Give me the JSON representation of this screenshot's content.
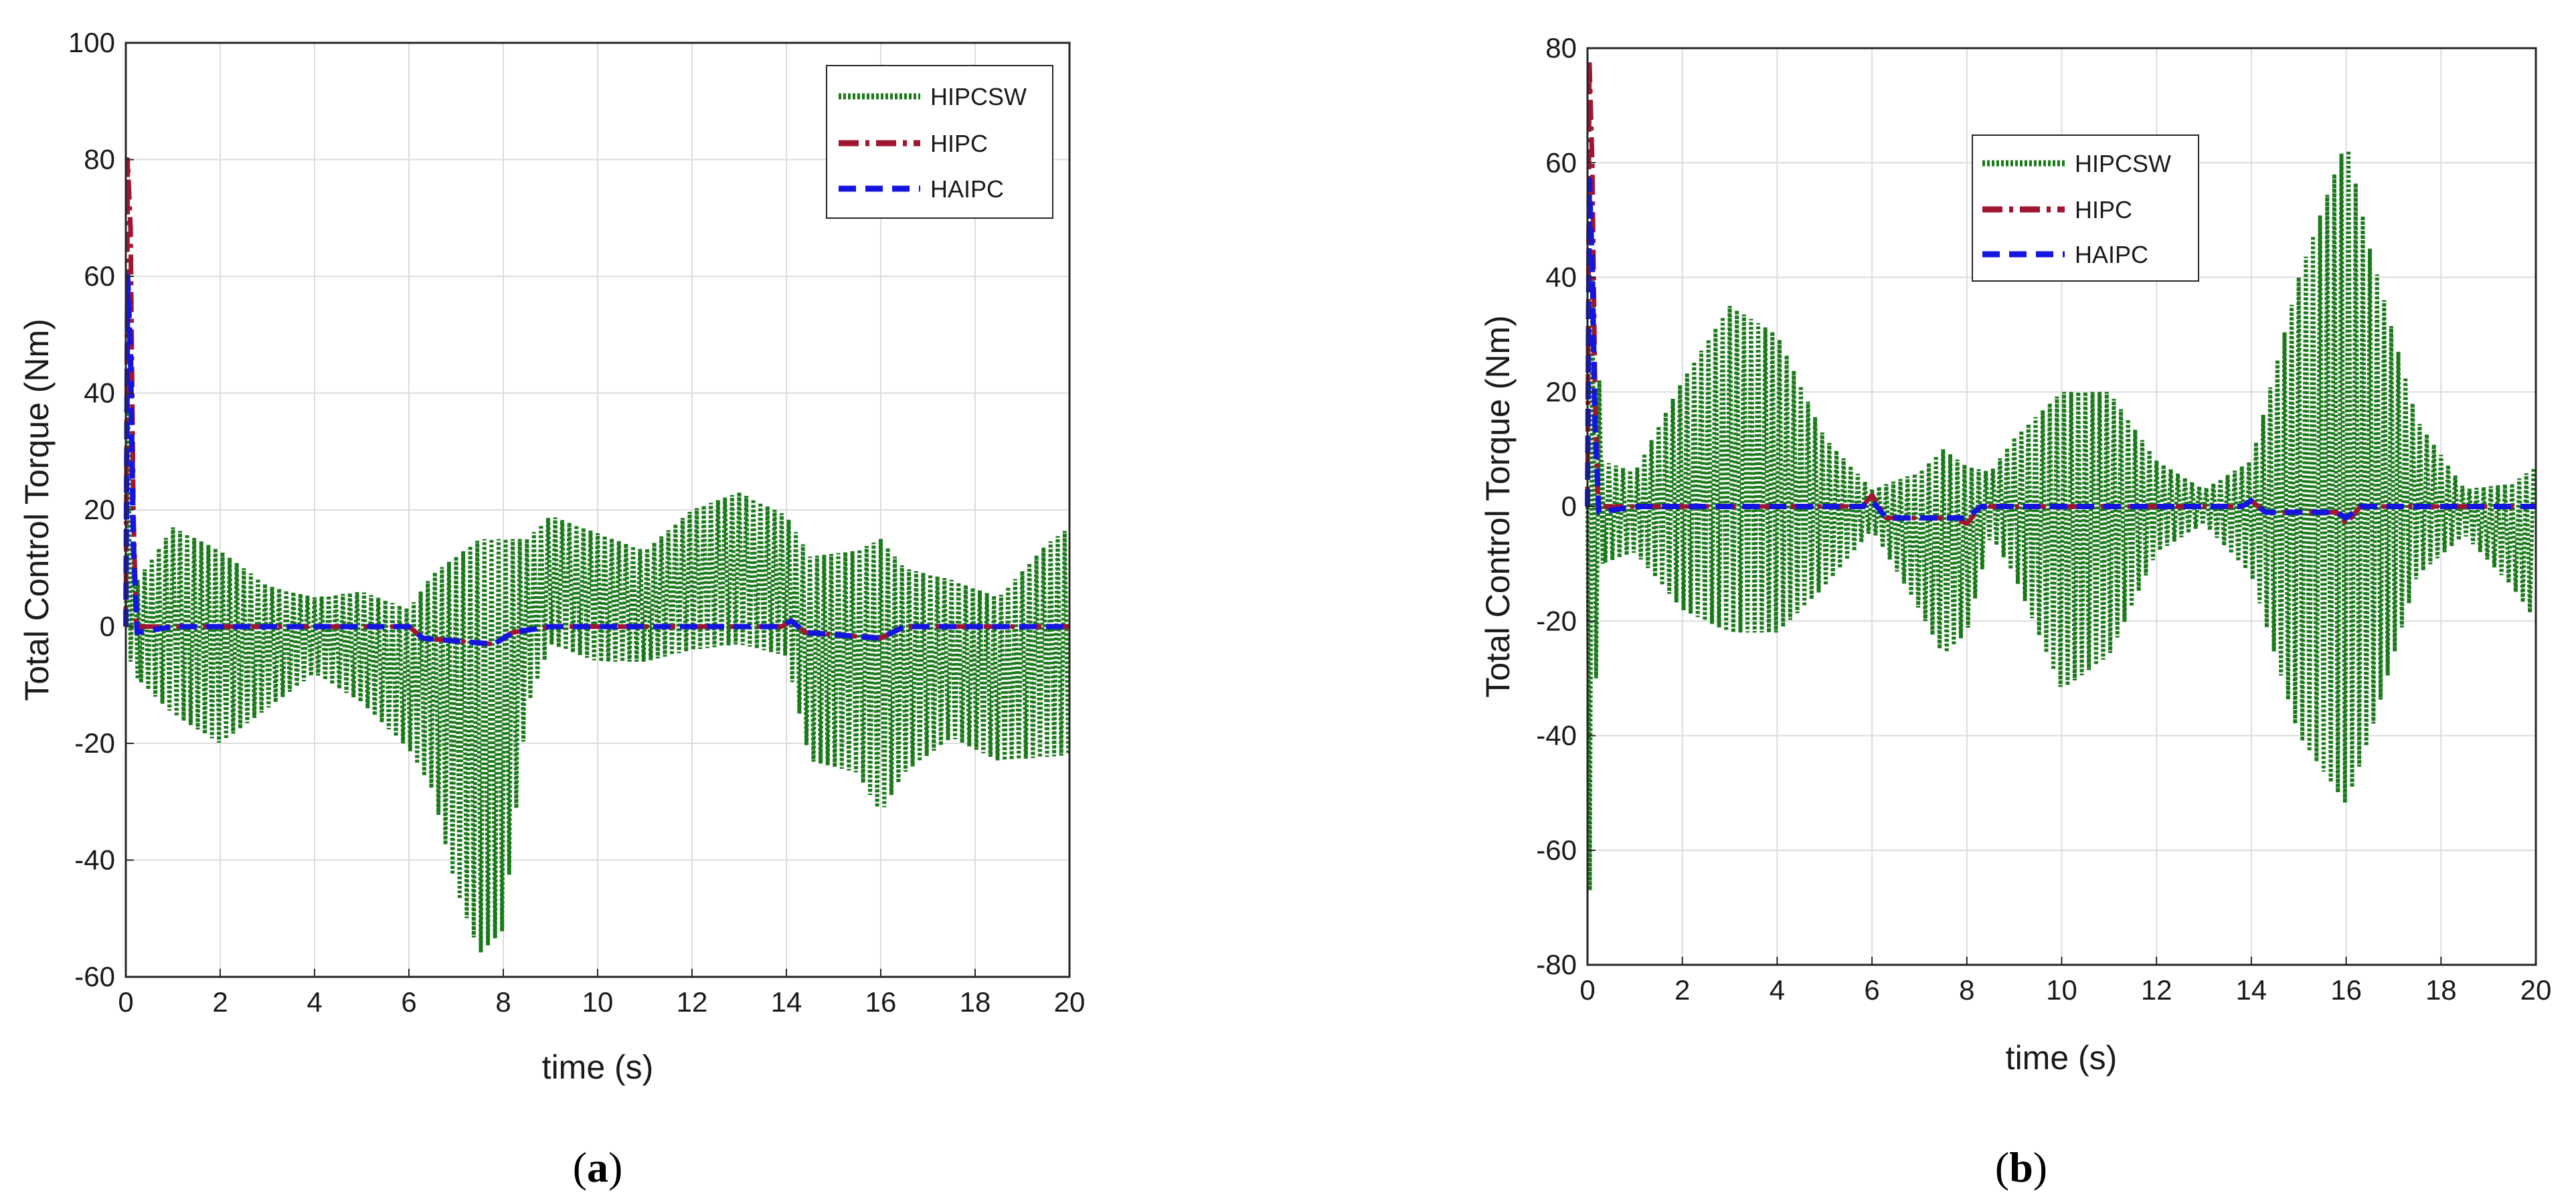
{
  "chart_data": [
    {
      "type": "line",
      "panel_prefix": "(",
      "panel_letter": "a",
      "panel_suffix": ")",
      "xlabel": "time (s)",
      "ylabel": "Total Control Torque (Nm)",
      "xlim": [
        0,
        20
      ],
      "ylim": [
        -60,
        100
      ],
      "xticks": [
        0,
        2,
        4,
        6,
        8,
        10,
        12,
        14,
        16,
        18,
        20
      ],
      "yticks": [
        -60,
        -40,
        -20,
        0,
        20,
        40,
        60,
        80,
        100
      ],
      "grid": true,
      "legend_position": "top-right",
      "series": [
        {
          "name": "HIPCSW",
          "color": "#1a7a1a",
          "style": "dotted",
          "oscillating": true,
          "carrier_period": 0.15,
          "initial": [
            [
              0,
              0
            ],
            [
              0.05,
              38
            ],
            [
              0.1,
              -6
            ],
            [
              0.18,
              14
            ],
            [
              0.25,
              -9
            ]
          ],
          "upper": [
            [
              0.25,
              8
            ],
            [
              1,
              17
            ],
            [
              2,
              13
            ],
            [
              3,
              7
            ],
            [
              4,
              5
            ],
            [
              5,
              6
            ],
            [
              6,
              3
            ],
            [
              6.5,
              9
            ],
            [
              7.5,
              15
            ],
            [
              8.5,
              15
            ],
            [
              9,
              19
            ],
            [
              10,
              16
            ],
            [
              11,
              13
            ],
            [
              12,
              20
            ],
            [
              13,
              23
            ],
            [
              14,
              19
            ],
            [
              14.5,
              12
            ],
            [
              15.5,
              13
            ],
            [
              16,
              15
            ],
            [
              16.5,
              10
            ],
            [
              17.5,
              8
            ],
            [
              18.5,
              5
            ],
            [
              19.5,
              14
            ],
            [
              20,
              17
            ]
          ],
          "lower": [
            [
              0.25,
              -9
            ],
            [
              1,
              -15
            ],
            [
              2,
              -20
            ],
            [
              3,
              -14
            ],
            [
              4,
              -8
            ],
            [
              5,
              -13
            ],
            [
              6,
              -21
            ],
            [
              6.5,
              -28
            ],
            [
              7,
              -45
            ],
            [
              7.5,
              -56
            ],
            [
              8,
              -52
            ],
            [
              8.5,
              -14
            ],
            [
              9,
              -3
            ],
            [
              10,
              -6
            ],
            [
              11,
              -6
            ],
            [
              12,
              -4
            ],
            [
              13,
              -3
            ],
            [
              14,
              -5
            ],
            [
              14.5,
              -23
            ],
            [
              15.5,
              -25
            ],
            [
              16,
              -32
            ],
            [
              16.5,
              -25
            ],
            [
              17.5,
              -19
            ],
            [
              18.5,
              -23
            ],
            [
              20,
              -22
            ]
          ]
        },
        {
          "name": "HIPC",
          "color": "#a01530",
          "style": "dashdot",
          "points": [
            [
              0,
              0
            ],
            [
              0.04,
              80
            ],
            [
              0.1,
              68
            ],
            [
              0.16,
              20
            ],
            [
              0.22,
              0
            ],
            [
              1,
              0
            ],
            [
              6,
              0
            ],
            [
              6.3,
              -2
            ],
            [
              7.8,
              -3
            ],
            [
              8.2,
              -1
            ],
            [
              9,
              0
            ],
            [
              13.9,
              0
            ],
            [
              14.1,
              1
            ],
            [
              14.4,
              -1
            ],
            [
              16,
              -2
            ],
            [
              16.5,
              0
            ],
            [
              20,
              0
            ]
          ]
        },
        {
          "name": "HAIPC",
          "color": "#1515e0",
          "style": "dashed",
          "points": [
            [
              0,
              0
            ],
            [
              0.04,
              60
            ],
            [
              0.1,
              46
            ],
            [
              0.16,
              14
            ],
            [
              0.24,
              -1
            ],
            [
              1,
              0
            ],
            [
              6,
              0
            ],
            [
              6.3,
              -2
            ],
            [
              7.8,
              -3
            ],
            [
              8.2,
              -1
            ],
            [
              9,
              0
            ],
            [
              13.9,
              0
            ],
            [
              14.1,
              1
            ],
            [
              14.4,
              -1
            ],
            [
              16,
              -2
            ],
            [
              16.5,
              0
            ],
            [
              20,
              0
            ]
          ]
        }
      ]
    },
    {
      "type": "line",
      "panel_prefix": "(",
      "panel_letter": "b",
      "panel_suffix": ")",
      "xlabel": "time (s)",
      "ylabel": "Total Control Torque (Nm)",
      "xlim": [
        0,
        20
      ],
      "ylim": [
        -80,
        80
      ],
      "xticks": [
        0,
        2,
        4,
        6,
        8,
        10,
        12,
        14,
        16,
        18,
        20
      ],
      "yticks": [
        -80,
        -60,
        -40,
        -20,
        0,
        20,
        40,
        60,
        80
      ],
      "grid": true,
      "legend_position": "upper-center",
      "series": [
        {
          "name": "HIPCSW",
          "color": "#1a7a1a",
          "style": "dotted",
          "oscillating": true,
          "carrier_period": 0.15,
          "initial": [
            [
              0,
              0
            ],
            [
              0.05,
              -67
            ],
            [
              0.1,
              40
            ],
            [
              0.18,
              -30
            ],
            [
              0.25,
              22
            ],
            [
              0.32,
              -10
            ]
          ],
          "upper": [
            [
              0.3,
              8
            ],
            [
              1,
              6
            ],
            [
              2,
              22
            ],
            [
              3,
              35
            ],
            [
              4,
              30
            ],
            [
              5,
              12
            ],
            [
              6,
              3
            ],
            [
              7,
              6
            ],
            [
              7.5,
              10
            ],
            [
              8,
              7
            ],
            [
              8.5,
              6
            ],
            [
              9,
              12
            ],
            [
              10,
              20
            ],
            [
              11,
              20
            ],
            [
              12,
              8
            ],
            [
              13,
              3
            ],
            [
              14,
              8
            ],
            [
              15,
              40
            ],
            [
              16,
              64
            ],
            [
              16.5,
              45
            ],
            [
              17.5,
              15
            ],
            [
              18.5,
              3
            ],
            [
              19.5,
              4
            ],
            [
              20,
              7
            ]
          ],
          "lower": [
            [
              0.3,
              -10
            ],
            [
              1,
              -8
            ],
            [
              2,
              -18
            ],
            [
              3,
              -22
            ],
            [
              4,
              -22
            ],
            [
              5,
              -14
            ],
            [
              6,
              -4
            ],
            [
              7,
              -18
            ],
            [
              7.5,
              -26
            ],
            [
              8,
              -22
            ],
            [
              8.5,
              -5
            ],
            [
              9,
              -12
            ],
            [
              10,
              -32
            ],
            [
              11,
              -26
            ],
            [
              12,
              -8
            ],
            [
              13,
              -3
            ],
            [
              14,
              -12
            ],
            [
              15,
              -40
            ],
            [
              16,
              -52
            ],
            [
              16.5,
              -40
            ],
            [
              17.5,
              -12
            ],
            [
              18.5,
              -5
            ],
            [
              19.5,
              -14
            ],
            [
              20,
              -20
            ]
          ]
        },
        {
          "name": "HIPC",
          "color": "#a01530",
          "style": "dashdot",
          "points": [
            [
              0,
              0
            ],
            [
              0.04,
              78
            ],
            [
              0.1,
              60
            ],
            [
              0.16,
              20
            ],
            [
              0.22,
              0
            ],
            [
              1,
              0
            ],
            [
              5.8,
              0
            ],
            [
              6,
              2
            ],
            [
              6.3,
              -2
            ],
            [
              7.7,
              -2
            ],
            [
              8,
              -3
            ],
            [
              8.3,
              0
            ],
            [
              13.8,
              0
            ],
            [
              14,
              1
            ],
            [
              14.3,
              -1
            ],
            [
              15.8,
              -1
            ],
            [
              16,
              -3
            ],
            [
              16.3,
              0
            ],
            [
              20,
              0
            ]
          ]
        },
        {
          "name": "HAIPC",
          "color": "#1515e0",
          "style": "dashed",
          "points": [
            [
              0,
              0
            ],
            [
              0.04,
              57
            ],
            [
              0.1,
              42
            ],
            [
              0.16,
              14
            ],
            [
              0.24,
              -1
            ],
            [
              1,
              0
            ],
            [
              5.8,
              0
            ],
            [
              6,
              1
            ],
            [
              6.3,
              -2
            ],
            [
              7.7,
              -2
            ],
            [
              8,
              -2
            ],
            [
              8.3,
              0
            ],
            [
              13.8,
              0
            ],
            [
              14,
              1
            ],
            [
              14.3,
              -1
            ],
            [
              15.8,
              -1
            ],
            [
              16,
              -2
            ],
            [
              16.3,
              0
            ],
            [
              20,
              0
            ]
          ]
        }
      ]
    }
  ]
}
